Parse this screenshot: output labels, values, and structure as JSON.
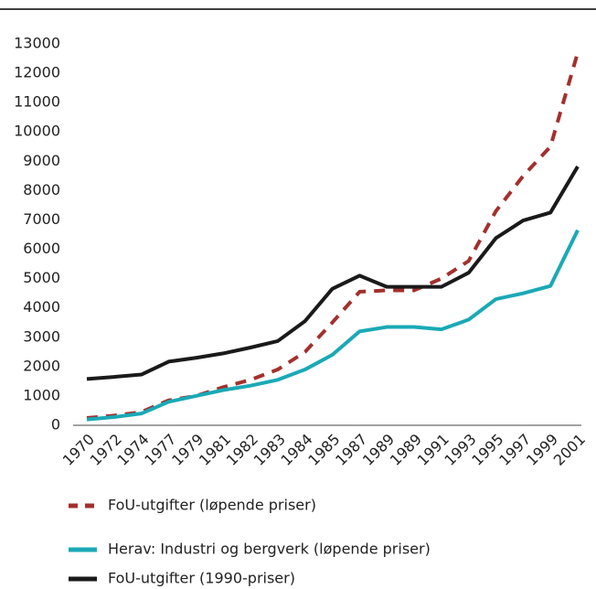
{
  "chart_data": {
    "type": "line",
    "categories": [
      "1970",
      "1972",
      "1974",
      "1977",
      "1979",
      "1981",
      "1982",
      "1983",
      "1984",
      "1985",
      "1987",
      "1989",
      "1989",
      "1991",
      "1993",
      "1995",
      "1997",
      "1999",
      "2001"
    ],
    "series": [
      {
        "name": "FoU-utgifter (løpende priser)",
        "color": "#a3302c",
        "dashed": true,
        "values": [
          250,
          330,
          450,
          850,
          1000,
          1300,
          1550,
          1900,
          2500,
          3500,
          4550,
          4600,
          4600,
          5000,
          5600,
          7300,
          8500,
          9500,
          12700
        ]
      },
      {
        "name": "Herav: Industri og bergverk (løpende priser)",
        "color": "#1aa9b6",
        "dashed": false,
        "values": [
          200,
          280,
          400,
          800,
          1000,
          1200,
          1350,
          1550,
          1900,
          2400,
          3200,
          3350,
          3350,
          3270,
          3600,
          4300,
          4500,
          4750,
          6650
        ]
      },
      {
        "name": "FoU-utgifter (1990-priser)",
        "color": "#1a1a1a",
        "dashed": false,
        "values": [
          1580,
          1650,
          1730,
          2170,
          2300,
          2450,
          2650,
          2870,
          3550,
          4650,
          5100,
          4720,
          4720,
          4720,
          5200,
          6380,
          6980,
          7250,
          8820
        ]
      }
    ],
    "ylim": [
      0,
      13000
    ],
    "yticks": [
      0,
      1000,
      2000,
      3000,
      4000,
      5000,
      6000,
      7000,
      8000,
      9000,
      10000,
      11000,
      12000,
      13000
    ],
    "grid": false
  }
}
